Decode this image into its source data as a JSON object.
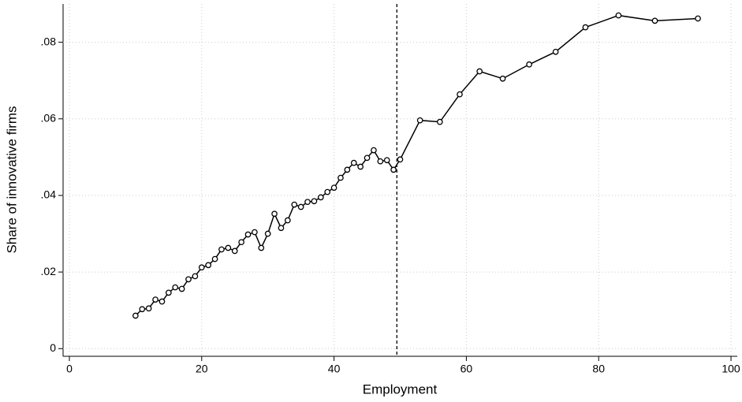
{
  "chart_data": {
    "type": "line",
    "x_label": "Employment",
    "y_label": "Share of innovative firms",
    "x": [
      10,
      11,
      12,
      13,
      14,
      15,
      16,
      17,
      18,
      19,
      20,
      21,
      22,
      23,
      24,
      25,
      26,
      27,
      28,
      29,
      30,
      31,
      32,
      33,
      34,
      35,
      36,
      37,
      38,
      39,
      40,
      41,
      42,
      43,
      44,
      45,
      46,
      47,
      48,
      49,
      50,
      53,
      56,
      59,
      62,
      65.5,
      69.5,
      73.5,
      78,
      83,
      88.5,
      95
    ],
    "series": [
      {
        "name": "Share of innovative firms",
        "color": "#000000",
        "values": [
          0.0086,
          0.0103,
          0.0105,
          0.0128,
          0.0123,
          0.0146,
          0.016,
          0.0156,
          0.0181,
          0.0189,
          0.0212,
          0.0218,
          0.0234,
          0.0259,
          0.0263,
          0.0255,
          0.0278,
          0.0298,
          0.0304,
          0.0263,
          0.03,
          0.0352,
          0.0315,
          0.0335,
          0.0376,
          0.037,
          0.0383,
          0.0385,
          0.0395,
          0.0409,
          0.042,
          0.0446,
          0.0467,
          0.0485,
          0.0475,
          0.0498,
          0.0518,
          0.0489,
          0.0492,
          0.0467,
          0.0494,
          0.0596,
          0.0592,
          0.0664,
          0.0724,
          0.0705,
          0.0742,
          0.0775,
          0.0839,
          0.087,
          0.0856,
          0.0862
        ]
      }
    ],
    "vline": 49.5,
    "xlim": [
      -0.95,
      100.95
    ],
    "xticks": [
      0,
      20,
      40,
      60,
      80,
      100
    ],
    "ylim": [
      -0.002,
      0.09
    ],
    "yticks": [
      0,
      {
        "value": 0.02,
        "label": ".02"
      },
      {
        "value": 0.04,
        "label": ".04"
      },
      {
        "value": 0.06,
        "label": ".06"
      },
      {
        "value": 0.08,
        "label": ".08"
      }
    ],
    "grid": true
  }
}
